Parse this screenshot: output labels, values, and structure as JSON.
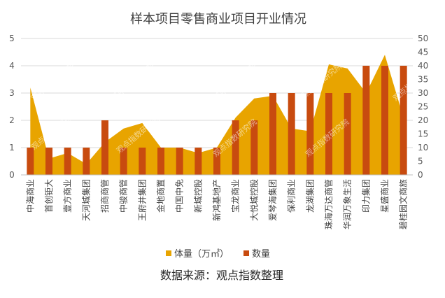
{
  "chart_data": {
    "type": "bar+area",
    "title": "样本项目零售商业项目开业情况",
    "source": "数据来源：观点指数整理",
    "watermark": "观点指数研究院",
    "categories": [
      "中海商业",
      "首创钜大",
      "壹方商业",
      "天河城集团",
      "招商商管",
      "中骏商管",
      "王府井集团",
      "金地商置",
      "中国中免",
      "新城控股",
      "新鸿基地产",
      "宝龙商业",
      "大悦城控股",
      "爱琴海集团",
      "保利商业",
      "龙湖集团",
      "珠海万达商管",
      "华润万象生活",
      "印力集团",
      "星盛商业",
      "碧桂园文商旅"
    ],
    "series": [
      {
        "name": "体量（万㎡）",
        "type": "area",
        "axis": "left",
        "color": "#E8A400",
        "values": [
          3.2,
          0.6,
          0.8,
          0.4,
          1.2,
          1.7,
          1.9,
          1.0,
          1.0,
          0.8,
          1.0,
          2.1,
          2.8,
          2.9,
          1.7,
          1.6,
          4.05,
          3.9,
          3.0,
          4.4,
          2.1
        ]
      },
      {
        "name": "数量",
        "type": "bar",
        "axis": "right",
        "color": "#C84B0F",
        "values": [
          10,
          10,
          10,
          10,
          20,
          10,
          10,
          10,
          10,
          10,
          10,
          20,
          20,
          30,
          30,
          30,
          30,
          30,
          40,
          40,
          40
        ]
      }
    ],
    "y_left": {
      "min": 0,
      "max": 5,
      "ticks": [
        "0",
        "1",
        "2",
        "3",
        "4",
        "5"
      ]
    },
    "y_right": {
      "min": 0,
      "max": 50,
      "ticks": [
        "0",
        "5",
        "10",
        "15",
        "20",
        "25",
        "30",
        "35",
        "40",
        "45",
        "50"
      ]
    },
    "grid": true,
    "legend_position": "bottom"
  }
}
